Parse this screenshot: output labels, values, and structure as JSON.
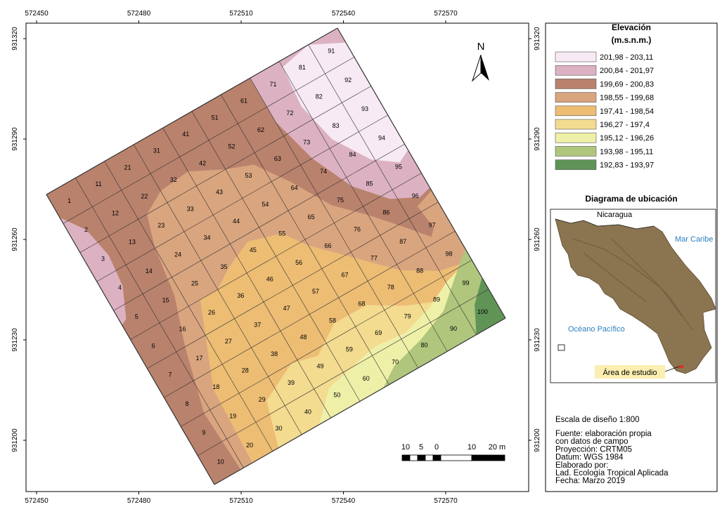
{
  "map": {
    "x_ticks": [
      572450,
      572480,
      572510,
      572540,
      572570
    ],
    "y_ticks": [
      931320,
      931290,
      931260,
      931230,
      931200
    ],
    "north": "N",
    "cells": [
      1,
      2,
      3,
      4,
      5,
      6,
      7,
      8,
      9,
      10,
      11,
      12,
      13,
      14,
      15,
      16,
      17,
      18,
      19,
      20,
      21,
      22,
      23,
      24,
      25,
      26,
      27,
      28,
      29,
      30,
      31,
      32,
      33,
      34,
      35,
      36,
      37,
      38,
      39,
      40,
      41,
      42,
      43,
      44,
      45,
      46,
      47,
      48,
      49,
      50,
      51,
      52,
      53,
      54,
      55,
      56,
      57,
      58,
      59,
      60,
      61,
      62,
      63,
      64,
      65,
      66,
      67,
      68,
      69,
      70,
      71,
      72,
      73,
      74,
      75,
      76,
      77,
      78,
      79,
      80,
      81,
      82,
      83,
      84,
      85,
      86,
      87,
      88,
      89,
      90,
      91,
      92,
      93,
      94,
      95,
      96,
      97,
      98,
      99,
      100
    ],
    "scale_bar": [
      "10",
      "5",
      "0",
      "10",
      "20 m"
    ]
  },
  "legend": {
    "title": "Elevación",
    "unit": "(m.s.n.m.)",
    "classes": [
      {
        "label": "201,98 - 203,11",
        "color": "#f7eaf4"
      },
      {
        "label": "200,84 - 201,97",
        "color": "#dcb2c2"
      },
      {
        "label": "199,69 - 200,83",
        "color": "#b9826d"
      },
      {
        "label": "198,55 - 199,68",
        "color": "#d9a57f"
      },
      {
        "label": "197,41 - 198,54",
        "color": "#edbd74"
      },
      {
        "label": "196,27 - 197,4",
        "color": "#f3db90"
      },
      {
        "label": "195,12 - 196,26",
        "color": "#eef0a8"
      },
      {
        "label": "193,98 - 195,11",
        "color": "#b0c67d"
      },
      {
        "label": "192,83 - 193,97",
        "color": "#5f9456"
      }
    ]
  },
  "location": {
    "title": "Diagrama de ubicación",
    "labels": [
      "Nicaragua",
      "Mar Caribe",
      "Océano Pacífico"
    ],
    "study_area": "Área de estudio"
  },
  "notes": [
    "Escala de diseño 1:800",
    "Fuente: elaboración propia",
    "con datos de campo",
    "Proyección: CRTM05",
    "Datum: WGS 1984",
    "Elaborado por:",
    "Lad. Ecología Tropical Aplicada",
    "Fecha: Marzo 2019"
  ]
}
